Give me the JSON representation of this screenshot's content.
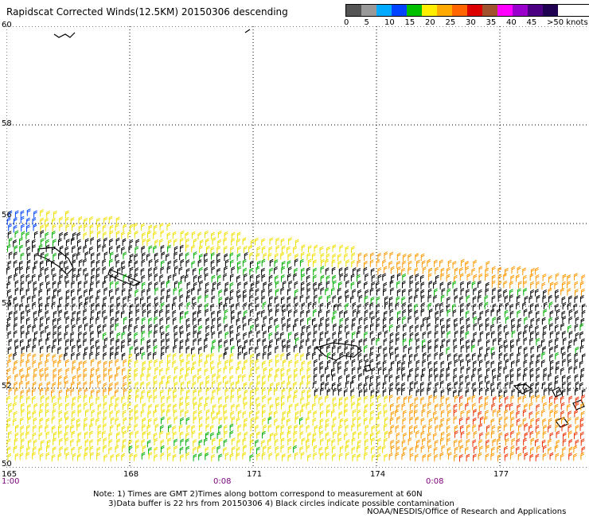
{
  "title": "Rapidscat Corrected Winds(12.5KM) 20150306 descending",
  "legend": {
    "labels": [
      "0",
      "5",
      "10",
      "15",
      "20",
      "25",
      "30",
      "35",
      "40",
      "45",
      ">50 knots"
    ],
    "colors": [
      "#555555",
      "#999999",
      "#00aaff",
      "#0044ff",
      "#00c000",
      "#ffee00",
      "#ffaa00",
      "#ff6600",
      "#dd0000",
      "#a0522d",
      "#ff00ff",
      "#9900cc",
      "#4b0082",
      "#200050"
    ]
  },
  "axes": {
    "lat_labels": [
      "60",
      "58",
      "56",
      "54",
      "52",
      "50"
    ],
    "lon_labels": [
      "165",
      "168",
      "171",
      "174",
      "177"
    ],
    "time_labels": [
      "1:00",
      "0:08",
      "0:08"
    ]
  },
  "notes": {
    "line1": "Note: 1) Times are GMT 2)Times along bottom correspond to measurement at 60N",
    "line2": "      3)Data buffer is 22 hrs from 20150306 4) Black circles indicate possible contamination"
  },
  "credit": "NOAA/NESDIS/Office of Research and Applications",
  "palette": {
    "black": "#000000",
    "blue": "#0044ff",
    "green": "#00b000",
    "yellow": "#f0e000",
    "orange": "#ff9900",
    "red": "#ee3300",
    "grid": "#000000"
  }
}
